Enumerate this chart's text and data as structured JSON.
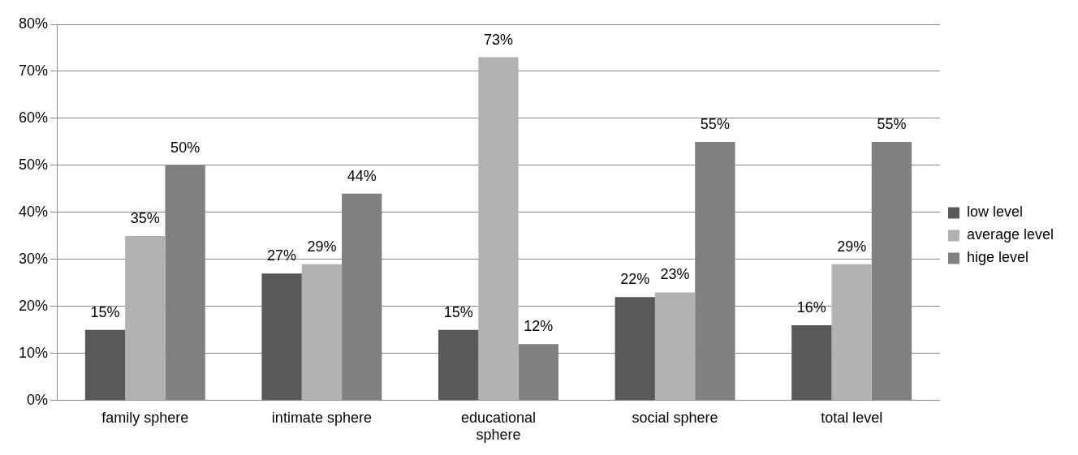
{
  "chart_data": {
    "type": "bar",
    "categories": [
      "family sphere",
      "intimate sphere",
      "educational sphere",
      "social sphere",
      "total level"
    ],
    "series": [
      {
        "name": "low level",
        "color": "#595959",
        "values": [
          15,
          27,
          15,
          22,
          16
        ],
        "value_labels": [
          "15%",
          "27%",
          "15%",
          "22%",
          "16%"
        ]
      },
      {
        "name": "average level",
        "color": "#b2b2b2",
        "values": [
          35,
          29,
          73,
          23,
          29
        ],
        "value_labels": [
          "35%",
          "29%",
          "73%",
          "23%",
          "29%"
        ]
      },
      {
        "name": "hige level",
        "color": "#808080",
        "values": [
          50,
          44,
          12,
          55,
          55
        ],
        "value_labels": [
          "50%",
          "44%",
          "12%",
          "55%",
          "55%"
        ]
      }
    ],
    "ylim": [
      0,
      80
    ],
    "yticks": [
      {
        "value": 0,
        "label": "0%"
      },
      {
        "value": 10,
        "label": "10%"
      },
      {
        "value": 20,
        "label": "20%"
      },
      {
        "value": 30,
        "label": "30%"
      },
      {
        "value": 40,
        "label": "40%"
      },
      {
        "value": 50,
        "label": "50%"
      },
      {
        "value": 60,
        "label": "60%"
      },
      {
        "value": 70,
        "label": "70%"
      },
      {
        "value": 80,
        "label": "80%"
      }
    ],
    "grid": "y",
    "legend": "right"
  }
}
